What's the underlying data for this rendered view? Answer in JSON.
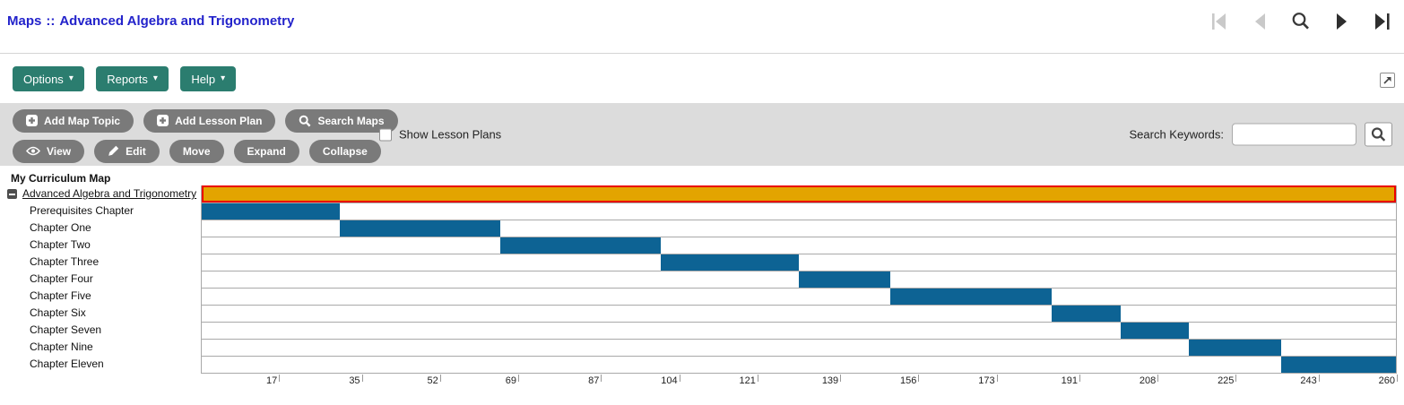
{
  "header": {
    "breadcrumb": {
      "section": "Maps",
      "separator": "::",
      "title": "Advanced Algebra and Trigonometry"
    },
    "nav_icons": [
      "first-page-icon",
      "previous-page-icon",
      "zoom-search-icon",
      "next-page-icon",
      "last-page-icon"
    ]
  },
  "menubar": {
    "items": [
      {
        "label": "Options"
      },
      {
        "label": "Reports"
      },
      {
        "label": "Help"
      }
    ],
    "caret": "▾",
    "popout_icon": "open-in-new-window-icon"
  },
  "toolbar": {
    "row1": [
      "Add Map Topic",
      "Add Lesson Plan",
      "Search Maps"
    ],
    "row2": [
      "View",
      "Edit",
      "Move",
      "Expand",
      "Collapse"
    ],
    "show_lesson_plans": "Show Lesson Plans",
    "show_lesson_plans_checked": false,
    "search_keywords_label": "Search Keywords:",
    "search_input_value": ""
  },
  "tree": {
    "header": "My Curriculum Map"
  },
  "chart_data": {
    "type": "gantt",
    "unit_max": 260,
    "axis_ticks": [
      17,
      35,
      52,
      69,
      87,
      104,
      121,
      139,
      156,
      173,
      191,
      208,
      225,
      243,
      260
    ],
    "rows": [
      {
        "label": "Advanced Algebra and Trigonometry",
        "start": 0,
        "end": 260,
        "style": "map"
      },
      {
        "label": "Prerequisites Chapter",
        "start": 0,
        "end": 30,
        "style": "topic"
      },
      {
        "label": "Chapter One",
        "start": 30,
        "end": 65,
        "style": "topic"
      },
      {
        "label": "Chapter Two",
        "start": 65,
        "end": 100,
        "style": "topic"
      },
      {
        "label": "Chapter Three",
        "start": 100,
        "end": 130,
        "style": "topic"
      },
      {
        "label": "Chapter Four",
        "start": 130,
        "end": 150,
        "style": "topic"
      },
      {
        "label": "Chapter Five",
        "start": 150,
        "end": 185,
        "style": "topic"
      },
      {
        "label": "Chapter Six",
        "start": 185,
        "end": 200,
        "style": "topic"
      },
      {
        "label": "Chapter Seven",
        "start": 200,
        "end": 215,
        "style": "topic"
      },
      {
        "label": "Chapter Nine",
        "start": 215,
        "end": 235,
        "style": "topic"
      },
      {
        "label": "Chapter Eleven",
        "start": 235,
        "end": 260,
        "style": "topic"
      }
    ]
  },
  "colors": {
    "accent_teal": "#2b7d6f",
    "pill_gray": "#7a7a7a",
    "toolbar_bg": "#dcdcdc",
    "bar_blue": "#0d6394",
    "map_orange": "#e3a400",
    "map_border_red": "#ea0000",
    "link_blue": "#2323cb"
  }
}
